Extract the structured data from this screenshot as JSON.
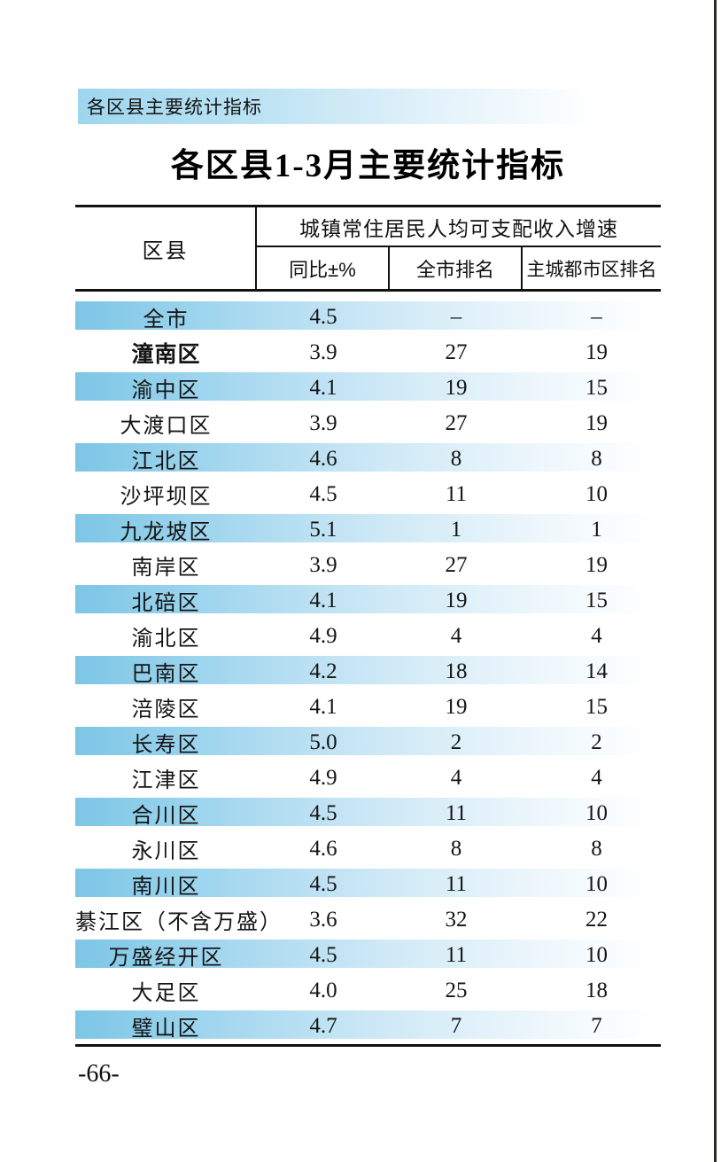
{
  "page": {
    "section_band": "各区县主要统计指标",
    "title": "各区县1-3月主要统计指标",
    "page_number": "-66-"
  },
  "colors": {
    "row_band_blue": "#7cc6e5",
    "section_band_blue": "#9ed6ee",
    "border_black": "#111111",
    "scan_edge": "#2e2927"
  },
  "table": {
    "region_header": "区县",
    "group_header": "城镇常住居民人均可支配收入增速",
    "sub_headers": [
      "同比±%",
      "全市排名",
      "主城都市区排名"
    ],
    "rows": [
      {
        "name": "全市",
        "yoy": "4.5",
        "city_rank": "–",
        "metro_rank": "–",
        "shaded": true,
        "emphasized": false
      },
      {
        "name": "潼南区",
        "yoy": "3.9",
        "city_rank": "27",
        "metro_rank": "19",
        "shaded": false,
        "emphasized": true
      },
      {
        "name": "渝中区",
        "yoy": "4.1",
        "city_rank": "19",
        "metro_rank": "15",
        "shaded": true,
        "emphasized": false
      },
      {
        "name": "大渡口区",
        "yoy": "3.9",
        "city_rank": "27",
        "metro_rank": "19",
        "shaded": false,
        "emphasized": false
      },
      {
        "name": "江北区",
        "yoy": "4.6",
        "city_rank": "8",
        "metro_rank": "8",
        "shaded": true,
        "emphasized": false
      },
      {
        "name": "沙坪坝区",
        "yoy": "4.5",
        "city_rank": "11",
        "metro_rank": "10",
        "shaded": false,
        "emphasized": false
      },
      {
        "name": "九龙坡区",
        "yoy": "5.1",
        "city_rank": "1",
        "metro_rank": "1",
        "shaded": true,
        "emphasized": false
      },
      {
        "name": "南岸区",
        "yoy": "3.9",
        "city_rank": "27",
        "metro_rank": "19",
        "shaded": false,
        "emphasized": false
      },
      {
        "name": "北碚区",
        "yoy": "4.1",
        "city_rank": "19",
        "metro_rank": "15",
        "shaded": true,
        "emphasized": false
      },
      {
        "name": "渝北区",
        "yoy": "4.9",
        "city_rank": "4",
        "metro_rank": "4",
        "shaded": false,
        "emphasized": false
      },
      {
        "name": "巴南区",
        "yoy": "4.2",
        "city_rank": "18",
        "metro_rank": "14",
        "shaded": true,
        "emphasized": false
      },
      {
        "name": "涪陵区",
        "yoy": "4.1",
        "city_rank": "19",
        "metro_rank": "15",
        "shaded": false,
        "emphasized": false
      },
      {
        "name": "长寿区",
        "yoy": "5.0",
        "city_rank": "2",
        "metro_rank": "2",
        "shaded": true,
        "emphasized": false
      },
      {
        "name": "江津区",
        "yoy": "4.9",
        "city_rank": "4",
        "metro_rank": "4",
        "shaded": false,
        "emphasized": false
      },
      {
        "name": "合川区",
        "yoy": "4.5",
        "city_rank": "11",
        "metro_rank": "10",
        "shaded": true,
        "emphasized": false
      },
      {
        "name": "永川区",
        "yoy": "4.6",
        "city_rank": "8",
        "metro_rank": "8",
        "shaded": false,
        "emphasized": false
      },
      {
        "name": "南川区",
        "yoy": "4.5",
        "city_rank": "11",
        "metro_rank": "10",
        "shaded": true,
        "emphasized": false
      },
      {
        "name": "綦江区（不含万盛）",
        "yoy": "3.6",
        "city_rank": "32",
        "metro_rank": "22",
        "shaded": false,
        "emphasized": false
      },
      {
        "name": "万盛经开区",
        "yoy": "4.5",
        "city_rank": "11",
        "metro_rank": "10",
        "shaded": true,
        "emphasized": false
      },
      {
        "name": "大足区",
        "yoy": "4.0",
        "city_rank": "25",
        "metro_rank": "18",
        "shaded": false,
        "emphasized": false
      },
      {
        "name": "璧山区",
        "yoy": "4.7",
        "city_rank": "7",
        "metro_rank": "7",
        "shaded": true,
        "emphasized": false
      }
    ]
  }
}
